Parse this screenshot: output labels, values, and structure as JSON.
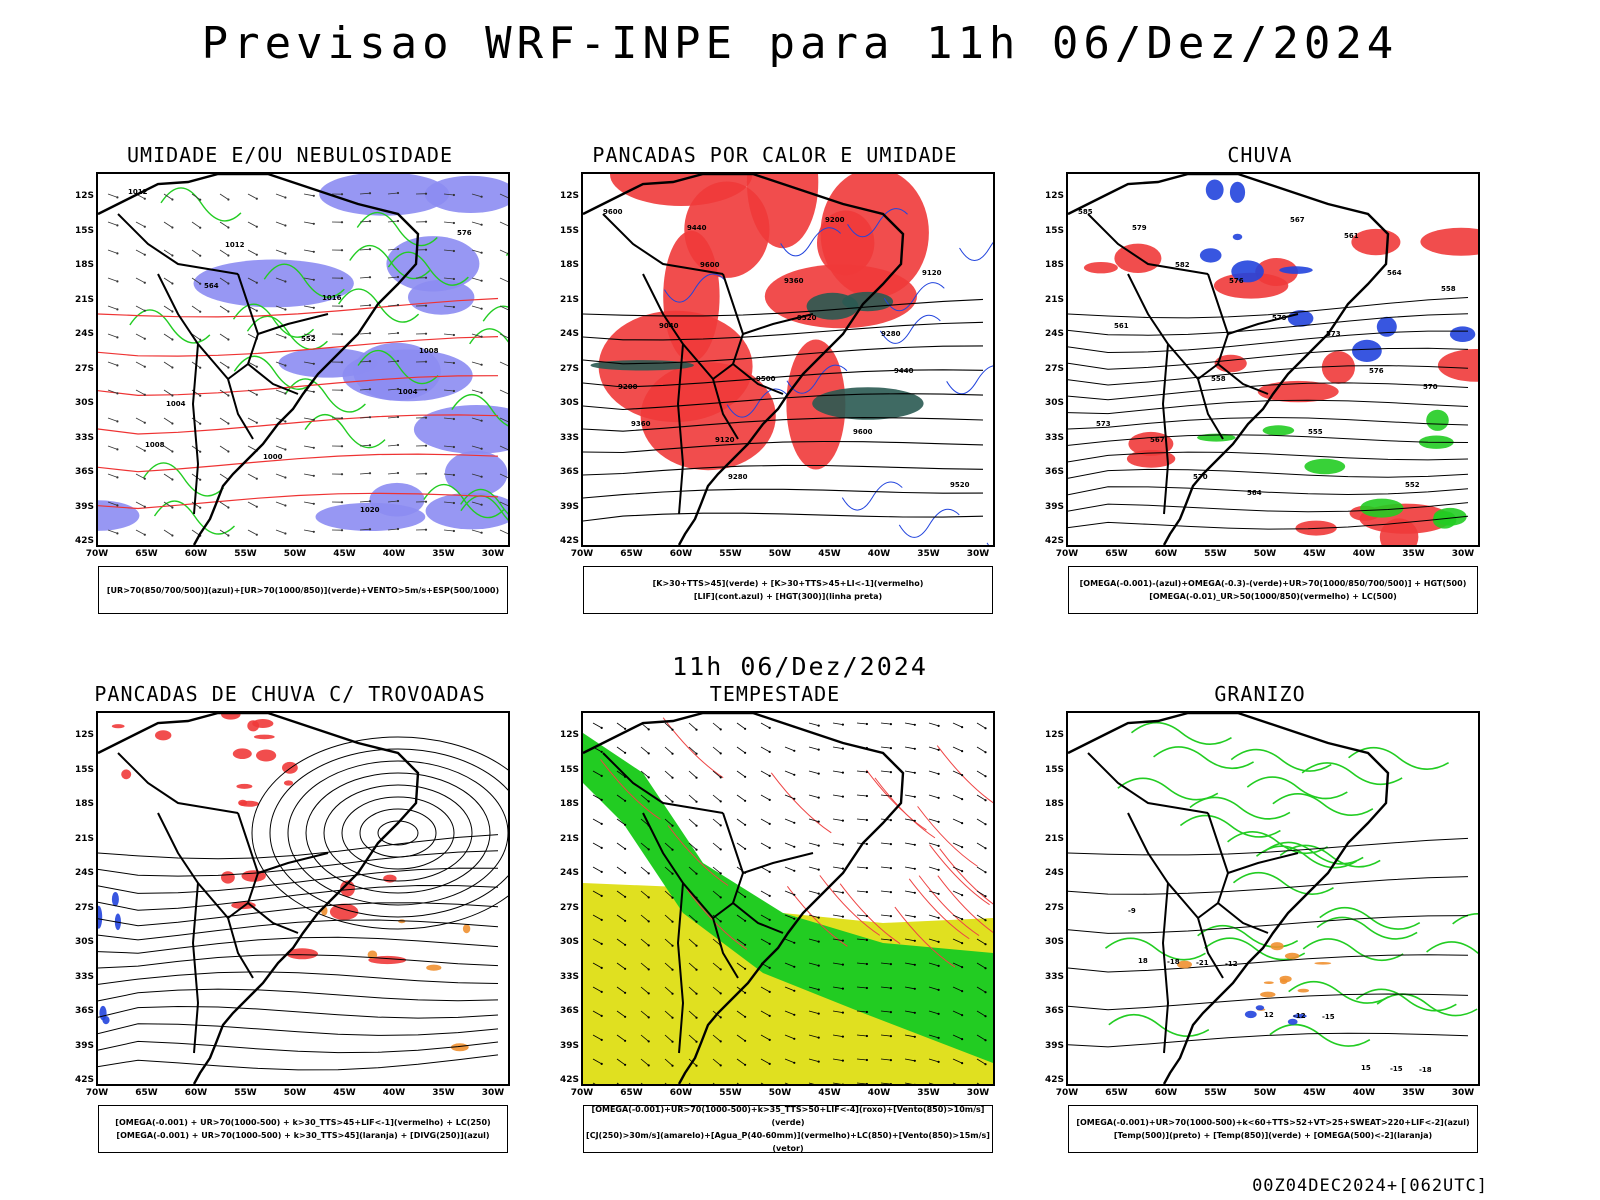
{
  "main_title": "Previsao WRF-INPE  para 11h 06/Dez/2024",
  "mid_title": "11h 06/Dez/2024",
  "footer": "00Z04DEC2024+[062UTC]",
  "lat_labels": [
    "12S",
    "15S",
    "18S",
    "21S",
    "24S",
    "27S",
    "30S",
    "33S",
    "36S",
    "39S",
    "42S"
  ],
  "lon_labels": [
    "70W",
    "65W",
    "60W",
    "55W",
    "50W",
    "45W",
    "40W",
    "35W",
    "30W"
  ],
  "colors": {
    "blue_fill": "#8c8cf2",
    "green_contour": "#22cc22",
    "red_fill": "#f03a3a",
    "dark_teal": "#2a5a52",
    "blue_contour": "#2244dd",
    "yellow": "#e0e020",
    "orange": "#f09030",
    "bright_green": "#22cc22"
  },
  "panels": [
    {
      "title": "UMIDADE E/OU NEBULOSIDADE",
      "legend": [
        "[UR>70(850/700/500)](azul)+[UR>70(1000/850)](verde)+VENTO>5m/s+ESP(500/1000)"
      ],
      "contour_labels": [
        "1012",
        "1012",
        "1016",
        "1008",
        "1004",
        "1000",
        "1020",
        "576",
        "564",
        "552",
        "1004",
        "1008"
      ]
    },
    {
      "title": "PANCADAS POR CALOR E UMIDADE",
      "legend": [
        "[K>30+TTS>45](verde) + [K>30+TTS>45+LI<-1](vermelho)",
        "[LIF](cont.azul) + [HGT(300)](linha preta)"
      ],
      "contour_labels": [
        "9600",
        "9600",
        "9520",
        "9440",
        "9360",
        "9280",
        "9200",
        "9120",
        "9040",
        "9500",
        "9600",
        "9520",
        "9440",
        "9360",
        "9280",
        "9200",
        "9120"
      ]
    },
    {
      "title": "CHUVA",
      "legend": [
        "[OMEGA(-0.001)-(azul)+OMEGA(-0.3)-(verde)+UR>70(1000/850/700/500)] + HGT(500)",
        "[OMEGA(-0.01)_UR>50(1000/850)(vermelho) + LC(500)"
      ],
      "contour_labels": [
        "585",
        "582",
        "579",
        "576",
        "573",
        "570",
        "567",
        "564",
        "561",
        "558",
        "555",
        "552",
        "579",
        "576",
        "573",
        "570",
        "567",
        "564",
        "561",
        "558"
      ]
    },
    {
      "title": "PANCADAS DE CHUVA C/ TROVOADAS",
      "legend": [
        "[OMEGA(-0.001) + UR>70(1000-500) + k>30_TTS>45+LIF<-1](vermelho) + LC(250)",
        "[OMEGA(-0.001) + UR>70(1000-500) + k>30_TTS>45](laranja) + [DIVG(250)](azul)"
      ],
      "contour_labels": []
    },
    {
      "title": "TEMPESTADE",
      "legend": [
        "[OMEGA(-0.001)+UR>70(1000-500)+k>35_TTS>50+LIF<-4](roxo)+[Vento(850)>10m/s](verde)",
        "[CJ(250)>30m/s](amarelo)+[Agua_P(40-60mm)](vermelho)+LC(850)+[Vento(850)>15m/s](vetor)"
      ],
      "contour_labels": []
    },
    {
      "title": "GRANIZO",
      "legend": [
        "[OMEGA(-0.001)+UR>70(1000-500)+k<60+TTS>52+VT>25+SWEAT>220+LIF<-2](azul)",
        "[Temp(500)](preto) + [Temp(850)](verde) + [OMEGA(500)<-2](laranja)"
      ],
      "contour_labels": [
        "-9",
        "-12",
        "-15",
        "-18",
        "-21",
        "-12",
        "-15",
        "-18",
        "12",
        "15",
        "18"
      ]
    }
  ]
}
